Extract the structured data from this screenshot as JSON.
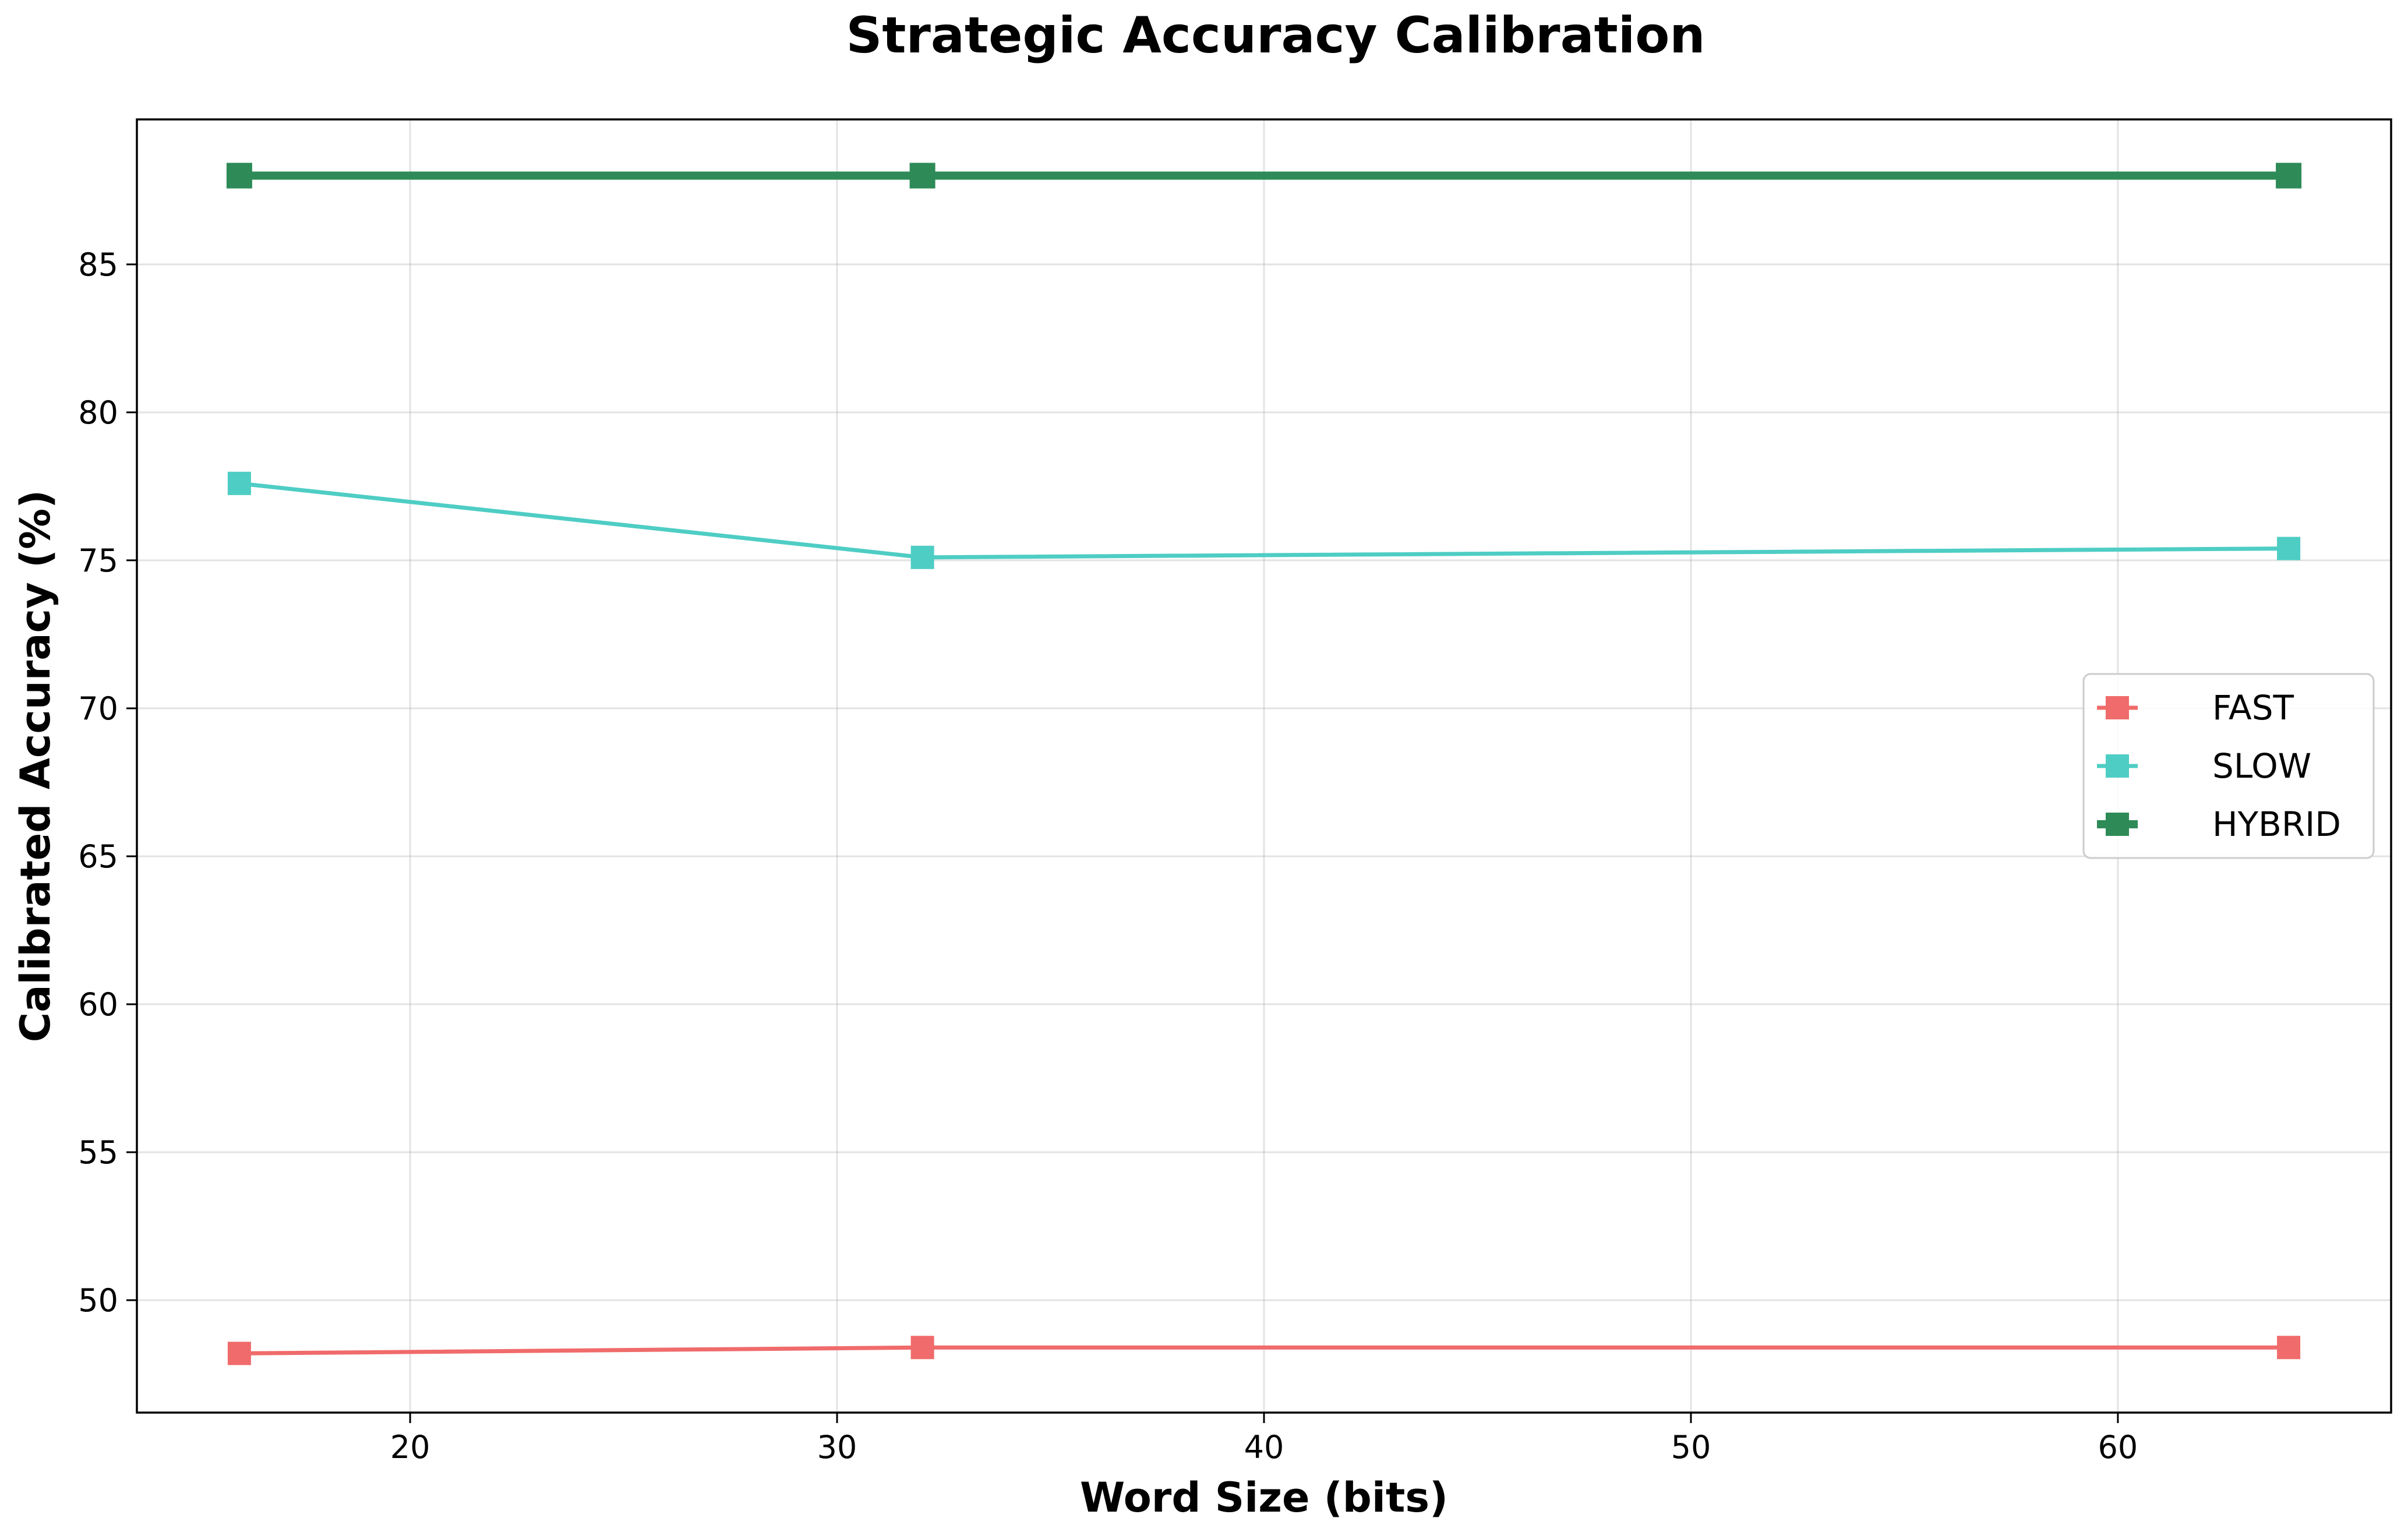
{
  "chart_data": {
    "type": "line",
    "title": "Strategic Accuracy Calibration",
    "xlabel": "Word Size (bits)",
    "ylabel": "Calibrated Accuracy (%)",
    "x": [
      16,
      32,
      64
    ],
    "xlim": [
      13.6,
      66.4
    ],
    "ylim": [
      46.2,
      89.9
    ],
    "xticks": [
      20,
      30,
      40,
      50,
      60
    ],
    "yticks": [
      50,
      55,
      60,
      65,
      70,
      75,
      80,
      85
    ],
    "grid": true,
    "legend_position": "center-right",
    "series": [
      {
        "name": "FAST",
        "values": [
          48.2,
          48.4,
          48.4
        ],
        "color": "#f06b6b",
        "line_width": "thin",
        "marker": "square"
      },
      {
        "name": "SLOW",
        "values": [
          77.6,
          75.1,
          75.4
        ],
        "color": "#4ecdc4",
        "line_width": "thin",
        "marker": "square"
      },
      {
        "name": "HYBRID",
        "values": [
          88.0,
          88.0,
          88.0
        ],
        "color": "#2e8b57",
        "line_width": "thick",
        "marker": "square"
      }
    ]
  }
}
